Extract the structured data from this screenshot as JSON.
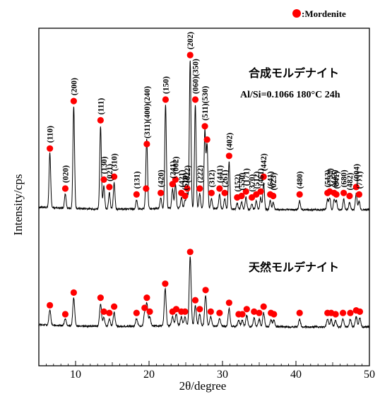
{
  "chart_data": {
    "type": "line",
    "xlabel": "2θ/degree",
    "ylabel": "Intensity/cps",
    "xlim": [
      5,
      50
    ],
    "xticks": [
      10,
      20,
      30,
      40,
      50
    ],
    "legend": {
      "label": ":Mordenite",
      "color": "#ff0000",
      "position": "top-right"
    },
    "marker_color": "#ff0000",
    "series": [
      {
        "name": "合成モルデナイト",
        "condition": "Al/Si=0.1066 180°C 24h",
        "peaks": [
          {
            "x": 6.5,
            "h": 0.37,
            "label": "(110)"
          },
          {
            "x": 8.6,
            "h": 0.1,
            "label": "(020)"
          },
          {
            "x": 9.75,
            "h": 0.69,
            "label": "(200)"
          },
          {
            "x": 13.4,
            "h": 0.56,
            "label": "(111)"
          },
          {
            "x": 13.85,
            "h": 0.16,
            "label": "(130)"
          },
          {
            "x": 14.6,
            "h": 0.11,
            "label": "(021)"
          },
          {
            "x": 15.25,
            "h": 0.18,
            "label": "(310)"
          },
          {
            "x": 18.3,
            "h": 0.06,
            "label": "(131)"
          },
          {
            "x": 19.6,
            "h": 0.1,
            "label": ""
          },
          {
            "x": 19.7,
            "h": 0.4,
            "label": "(311)(400)(240)"
          },
          {
            "x": 21.6,
            "h": 0.07,
            "label": "(420)"
          },
          {
            "x": 22.25,
            "h": 0.7,
            "label": "(150)"
          },
          {
            "x": 23.2,
            "h": 0.13,
            "label": "(241)"
          },
          {
            "x": 23.6,
            "h": 0.16,
            "label": "(002)"
          },
          {
            "x": 24.4,
            "h": 0.07,
            "label": "(421)"
          },
          {
            "x": 24.9,
            "h": 0.05,
            "label": "(510)"
          },
          {
            "x": 25.2,
            "h": 0.1,
            "label": "(022)"
          },
          {
            "x": 25.6,
            "h": 1.0,
            "label": "(202)"
          },
          {
            "x": 26.3,
            "h": 0.7,
            "label": "(060)(350)"
          },
          {
            "x": 26.9,
            "h": 0.1,
            "label": "(222)"
          },
          {
            "x": 27.6,
            "h": 0.52,
            "label": "(511)(530)"
          },
          {
            "x": 27.9,
            "h": 0.43,
            "label": ""
          },
          {
            "x": 28.5,
            "h": 0.07,
            "label": "(312)"
          },
          {
            "x": 29.6,
            "h": 0.1,
            "label": "(441)"
          },
          {
            "x": 30.3,
            "h": 0.07,
            "label": "(261)"
          },
          {
            "x": 30.9,
            "h": 0.32,
            "label": "(402)"
          },
          {
            "x": 32.0,
            "h": 0.04,
            "label": "(152)"
          },
          {
            "x": 32.6,
            "h": 0.05,
            "label": "(550)"
          },
          {
            "x": 33.2,
            "h": 0.08,
            "label": "(171)"
          },
          {
            "x": 34.0,
            "h": 0.04,
            "label": "(370)"
          },
          {
            "x": 34.6,
            "h": 0.06,
            "label": "(512)"
          },
          {
            "x": 35.2,
            "h": 0.08,
            "label": "(461)"
          },
          {
            "x": 35.6,
            "h": 0.18,
            "label": "(442)"
          },
          {
            "x": 36.5,
            "h": 0.06,
            "label": "(641)"
          },
          {
            "x": 36.9,
            "h": 0.05,
            "label": "(023)"
          },
          {
            "x": 40.5,
            "h": 0.06,
            "label": "(480)"
          },
          {
            "x": 44.3,
            "h": 0.07,
            "label": "(513)"
          },
          {
            "x": 44.6,
            "h": 0.08,
            "label": "(732)"
          },
          {
            "x": 45.2,
            "h": 0.07,
            "label": "(443)"
          },
          {
            "x": 45.5,
            "h": 0.06,
            "label": "(841)"
          },
          {
            "x": 46.5,
            "h": 0.07,
            "label": "(680)"
          },
          {
            "x": 47.3,
            "h": 0.05,
            "label": "(482)"
          },
          {
            "x": 48.2,
            "h": 0.11,
            "label": "(004)"
          },
          {
            "x": 48.6,
            "h": 0.06,
            "label": "(771)"
          }
        ]
      },
      {
        "name": "天然モルデナイト",
        "peaks": [
          {
            "x": 6.5,
            "h": 0.12
          },
          {
            "x": 8.6,
            "h": 0.05
          },
          {
            "x": 9.75,
            "h": 0.22
          },
          {
            "x": 13.4,
            "h": 0.18
          },
          {
            "x": 13.85,
            "h": 0.07
          },
          {
            "x": 14.6,
            "h": 0.06
          },
          {
            "x": 15.25,
            "h": 0.11
          },
          {
            "x": 18.3,
            "h": 0.06
          },
          {
            "x": 19.4,
            "h": 0.1
          },
          {
            "x": 19.7,
            "h": 0.18
          },
          {
            "x": 20.1,
            "h": 0.07
          },
          {
            "x": 22.2,
            "h": 0.29
          },
          {
            "x": 23.2,
            "h": 0.07
          },
          {
            "x": 23.7,
            "h": 0.09
          },
          {
            "x": 24.4,
            "h": 0.07
          },
          {
            "x": 24.9,
            "h": 0.07
          },
          {
            "x": 25.6,
            "h": 0.54
          },
          {
            "x": 26.3,
            "h": 0.16
          },
          {
            "x": 26.9,
            "h": 0.09
          },
          {
            "x": 27.7,
            "h": 0.24
          },
          {
            "x": 28.4,
            "h": 0.07
          },
          {
            "x": 29.6,
            "h": 0.06
          },
          {
            "x": 30.9,
            "h": 0.14
          },
          {
            "x": 32.2,
            "h": 0.05
          },
          {
            "x": 32.7,
            "h": 0.05
          },
          {
            "x": 33.3,
            "h": 0.09
          },
          {
            "x": 34.3,
            "h": 0.07
          },
          {
            "x": 35.0,
            "h": 0.06
          },
          {
            "x": 35.6,
            "h": 0.11
          },
          {
            "x": 36.6,
            "h": 0.06
          },
          {
            "x": 37.0,
            "h": 0.05
          },
          {
            "x": 40.5,
            "h": 0.06
          },
          {
            "x": 44.3,
            "h": 0.06
          },
          {
            "x": 44.8,
            "h": 0.06
          },
          {
            "x": 45.4,
            "h": 0.05
          },
          {
            "x": 46.4,
            "h": 0.06
          },
          {
            "x": 47.4,
            "h": 0.06
          },
          {
            "x": 48.2,
            "h": 0.08
          },
          {
            "x": 48.7,
            "h": 0.07
          }
        ]
      }
    ]
  }
}
